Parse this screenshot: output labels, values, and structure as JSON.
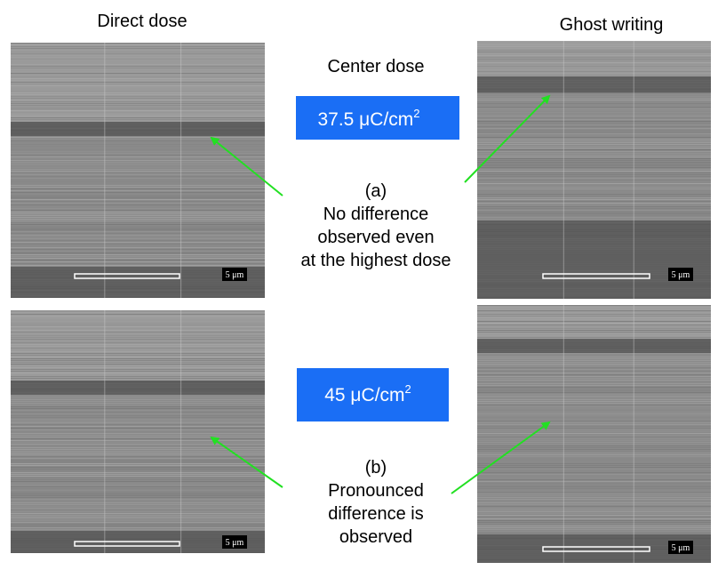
{
  "headers": {
    "left": "Direct dose",
    "right": "Ghost writing"
  },
  "center_label": "Center dose",
  "panels": [
    {
      "dose": "37.5 μC/cm",
      "dose_exponent": "2",
      "tag": "(a)",
      "caption_lines": [
        "No difference",
        "observed even",
        "at the highest dose"
      ]
    },
    {
      "dose": "45 μC/cm",
      "dose_exponent": "2",
      "tag": "(b)",
      "caption_lines": [
        "Pronounced",
        "difference is",
        "observed"
      ]
    }
  ],
  "scale_label": "5 μm"
}
